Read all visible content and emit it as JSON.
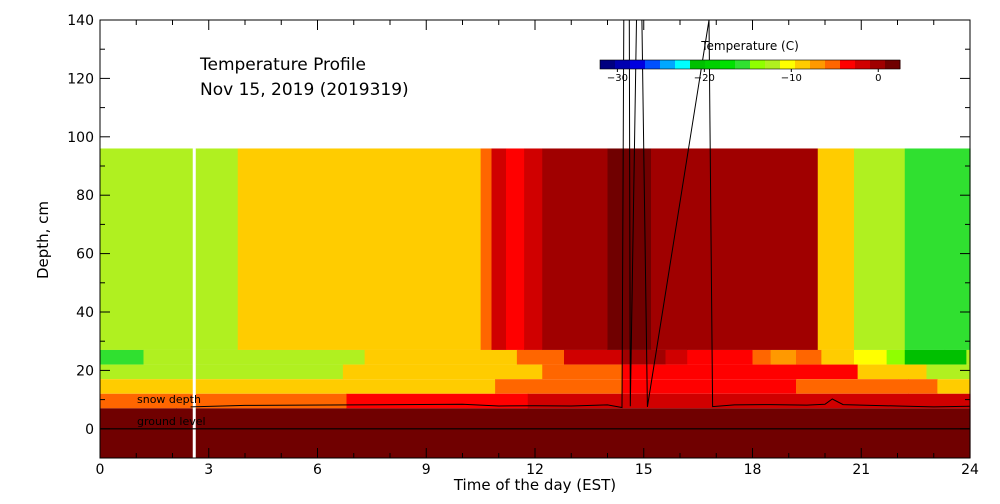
{
  "chart_data": {
    "type": "heatmap",
    "title": "Temperature Profile",
    "subtitle": "Nov 15, 2019 (2019319)",
    "xlabel": "Time of the day (EST)",
    "ylabel": "Depth, cm",
    "xlim": [
      0,
      24
    ],
    "ylim": [
      -10,
      140
    ],
    "x_ticks": [
      0,
      3,
      6,
      9,
      12,
      15,
      18,
      21,
      24
    ],
    "y_ticks": [
      0,
      20,
      40,
      60,
      80,
      100,
      120,
      140
    ],
    "colorbar": {
      "title": "Temperature (C)",
      "ticks": [
        -30,
        -20,
        -10,
        0
      ],
      "range": [
        -32,
        2.5
      ],
      "colors": [
        "#000080",
        "#0000b0",
        "#0000e0",
        "#0050ff",
        "#00a8ff",
        "#00ffff",
        "#00c000",
        "#00d000",
        "#00e000",
        "#30e030",
        "#90ff00",
        "#b0f020",
        "#ffff00",
        "#ffcc00",
        "#ff9900",
        "#ff6600",
        "#ff0000",
        "#d00000",
        "#a00000",
        "#700000"
      ]
    },
    "depth_bands": [
      {
        "y0": 27,
        "y1": 96,
        "cells": [
          [
            0,
            3.8,
            -13
          ],
          [
            3.8,
            10.5,
            -8.2
          ],
          [
            10.5,
            10.8,
            -4.5
          ],
          [
            10.8,
            11.2,
            -2.5
          ],
          [
            11.2,
            11.7,
            -3.5
          ],
          [
            11.7,
            12.2,
            -2.4
          ],
          [
            12.2,
            12.8,
            -0.5
          ],
          [
            12.8,
            14.0,
            0.5
          ],
          [
            14.0,
            15.2,
            1.3
          ],
          [
            15.2,
            16.2,
            0.5
          ],
          [
            16.2,
            18.5,
            -0.3
          ],
          [
            18.5,
            19.8,
            -0.5
          ],
          [
            19.8,
            20.8,
            -8.5
          ],
          [
            20.8,
            22.2,
            -12.5
          ],
          [
            22.2,
            23.3,
            -15
          ],
          [
            23.3,
            24,
            -16
          ]
        ]
      },
      {
        "y0": 22,
        "y1": 27,
        "cells": [
          [
            0,
            1.2,
            -15
          ],
          [
            1.2,
            7.3,
            -13
          ],
          [
            7.3,
            11.5,
            -8.5
          ],
          [
            11.5,
            12.2,
            -6
          ],
          [
            12.2,
            12.8,
            -4.5
          ],
          [
            12.8,
            14.4,
            -1.5
          ],
          [
            14.4,
            15.6,
            -0.5
          ],
          [
            15.6,
            16.2,
            -1.5
          ],
          [
            16.2,
            18.0,
            -3.5
          ],
          [
            18.0,
            18.5,
            -5
          ],
          [
            18.5,
            19.2,
            -7
          ],
          [
            19.2,
            19.9,
            -5
          ],
          [
            19.9,
            20.8,
            -8
          ],
          [
            20.8,
            21.7,
            -10.5
          ],
          [
            21.7,
            22.2,
            -14
          ],
          [
            22.2,
            23.9,
            -21
          ],
          [
            23.9,
            24,
            -13
          ]
        ]
      },
      {
        "y0": 17,
        "y1": 22,
        "cells": [
          [
            0,
            6.7,
            -13
          ],
          [
            6.7,
            12.2,
            -8.5
          ],
          [
            12.2,
            14.4,
            -5
          ],
          [
            14.4,
            20.9,
            -3.8
          ],
          [
            20.9,
            22.8,
            -8.5
          ],
          [
            22.8,
            24,
            -12
          ]
        ]
      },
      {
        "y0": 12,
        "y1": 17,
        "cells": [
          [
            0,
            10.9,
            -8.5
          ],
          [
            10.9,
            14.4,
            -5
          ],
          [
            14.4,
            19.2,
            -3
          ],
          [
            19.2,
            22.3,
            -4.5
          ],
          [
            22.3,
            23.1,
            -5
          ],
          [
            23.1,
            24,
            -8.5
          ]
        ]
      },
      {
        "y0": 7,
        "y1": 12,
        "cells": [
          [
            0,
            6.8,
            -5
          ],
          [
            6.8,
            11.8,
            -3
          ],
          [
            11.8,
            24,
            -2
          ]
        ]
      },
      {
        "y0": 0,
        "y1": 7,
        "cells": [
          [
            0,
            2.1,
            0.8
          ],
          [
            2.1,
            24,
            2.4
          ]
        ]
      },
      {
        "y0": -10,
        "y1": 0,
        "cells": [
          [
            0,
            24,
            0.8
          ]
        ]
      }
    ],
    "missing_columns": [
      2.6
    ],
    "snow_depth": {
      "label": "snow depth",
      "points": [
        [
          2.5,
          7.5
        ],
        [
          4,
          8
        ],
        [
          7,
          8.2
        ],
        [
          10,
          8.4
        ],
        [
          11,
          7.8
        ],
        [
          12,
          7.9
        ],
        [
          13,
          7.8
        ],
        [
          14,
          8.2
        ],
        [
          14.4,
          7.3
        ],
        [
          14.45,
          140
        ],
        [
          14.6,
          140
        ],
        [
          14.63,
          7.7
        ],
        [
          14.8,
          140
        ],
        [
          14.95,
          140
        ],
        [
          15.1,
          7.5
        ],
        [
          16.8,
          140
        ],
        [
          16.9,
          7.6
        ],
        [
          17.5,
          8.2
        ],
        [
          18.5,
          8.3
        ],
        [
          19.5,
          8.1
        ],
        [
          20,
          8.4
        ],
        [
          20.2,
          10.2
        ],
        [
          20.5,
          8.3
        ],
        [
          21,
          8.1
        ],
        [
          22,
          7.8
        ],
        [
          23,
          7.5
        ],
        [
          24,
          7.7
        ]
      ]
    },
    "ground_level": {
      "label": "ground level",
      "value": 0
    }
  }
}
